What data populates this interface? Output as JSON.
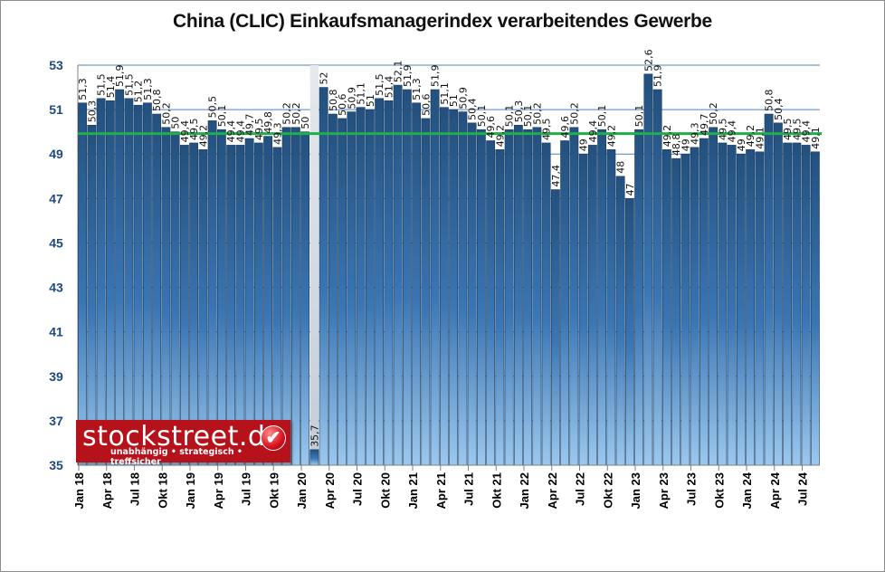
{
  "chart_data": {
    "type": "bar",
    "title": "China (CLIC) Einkaufsmanagerindex verarbeitendes Gewerbe",
    "xlabel": "",
    "ylabel": "",
    "ylim": [
      35,
      53
    ],
    "yticks": [
      35,
      37,
      39,
      41,
      43,
      45,
      47,
      49,
      51,
      53
    ],
    "grid": true,
    "reference_line": {
      "value": 50,
      "color": "#1fae4b"
    },
    "xtick_labels": [
      "Jan 18",
      "Apr 18",
      "Jul 18",
      "Okt 18",
      "Jan 19",
      "Apr 19",
      "Jul 19",
      "Okt 19",
      "Jan 20",
      "Apr 20",
      "Jul 20",
      "Okt 20",
      "Jan 21",
      "Apr 21",
      "Jul 21",
      "Okt 21",
      "Jan 22",
      "Apr 22",
      "Jul 22",
      "Okt 22",
      "Jan 23",
      "Apr 23",
      "Jul 23",
      "Okt 23",
      "Jan 24",
      "Apr 24",
      "Jul 24"
    ],
    "categories": [
      "Jan 18",
      "Feb 18",
      "Mär 18",
      "Apr 18",
      "Mai 18",
      "Jun 18",
      "Jul 18",
      "Aug 18",
      "Sep 18",
      "Okt 18",
      "Nov 18",
      "Dez 18",
      "Jan 19",
      "Feb 19",
      "Mär 19",
      "Apr 19",
      "Mai 19",
      "Jun 19",
      "Jul 19",
      "Aug 19",
      "Sep 19",
      "Okt 19",
      "Nov 19",
      "Dez 19",
      "Jan 20",
      "Feb 20",
      "Mär 20",
      "Apr 20",
      "Mai 20",
      "Jun 20",
      "Jul 20",
      "Aug 20",
      "Sep 20",
      "Okt 20",
      "Nov 20",
      "Dez 20",
      "Jan 21",
      "Feb 21",
      "Mär 21",
      "Apr 21",
      "Mai 21",
      "Jun 21",
      "Jul 21",
      "Aug 21",
      "Sep 21",
      "Okt 21",
      "Nov 21",
      "Dez 21",
      "Jan 22",
      "Feb 22",
      "Mär 22",
      "Apr 22",
      "Mai 22",
      "Jun 22",
      "Jul 22",
      "Aug 22",
      "Sep 22",
      "Okt 22",
      "Nov 22",
      "Dez 22",
      "Jan 23",
      "Feb 23",
      "Mär 23",
      "Apr 23",
      "Mai 23",
      "Jun 23",
      "Jul 23",
      "Aug 23",
      "Sep 23",
      "Okt 23",
      "Nov 23",
      "Dez 23",
      "Jan 24",
      "Feb 24",
      "Mär 24",
      "Apr 24",
      "Mai 24",
      "Jun 24",
      "Jul 24",
      "Aug 24"
    ],
    "values": [
      51.3,
      50.3,
      51.5,
      51.4,
      51.9,
      51.5,
      51.2,
      51.3,
      50.8,
      50.2,
      50,
      49.4,
      49.5,
      49.2,
      50.5,
      50.1,
      49.4,
      49.4,
      49.7,
      49.5,
      49.8,
      49.3,
      50.2,
      50.2,
      50,
      35.7,
      52,
      50.8,
      50.6,
      50.9,
      51.1,
      51,
      51.5,
      51.4,
      52.1,
      51.9,
      51.3,
      50.6,
      51.9,
      51.1,
      51,
      50.9,
      50.4,
      50.1,
      49.6,
      49.2,
      50.1,
      50.3,
      50.1,
      50.2,
      49.5,
      47.4,
      49.6,
      50.2,
      49,
      49.4,
      50.1,
      49.2,
      48,
      47,
      50.1,
      52.6,
      51.9,
      49.2,
      48.8,
      49,
      49.3,
      49.7,
      50.2,
      49.5,
      49.4,
      49,
      49.2,
      49.1,
      50.8,
      50.4,
      49.5,
      49.5,
      49.4,
      49.1
    ],
    "highlight_index": 25,
    "colors": {
      "bar_top": "#23507e",
      "bar_bottom": "#8fbde6",
      "grid": "#4f81bd",
      "ytick": "#1f497d",
      "highlight_bar": "#cfd6de"
    }
  },
  "logo": {
    "name": "stockstreet.de",
    "tagline": "unabhängig • strategisch • treffsicher",
    "check_glyph": "✔"
  }
}
